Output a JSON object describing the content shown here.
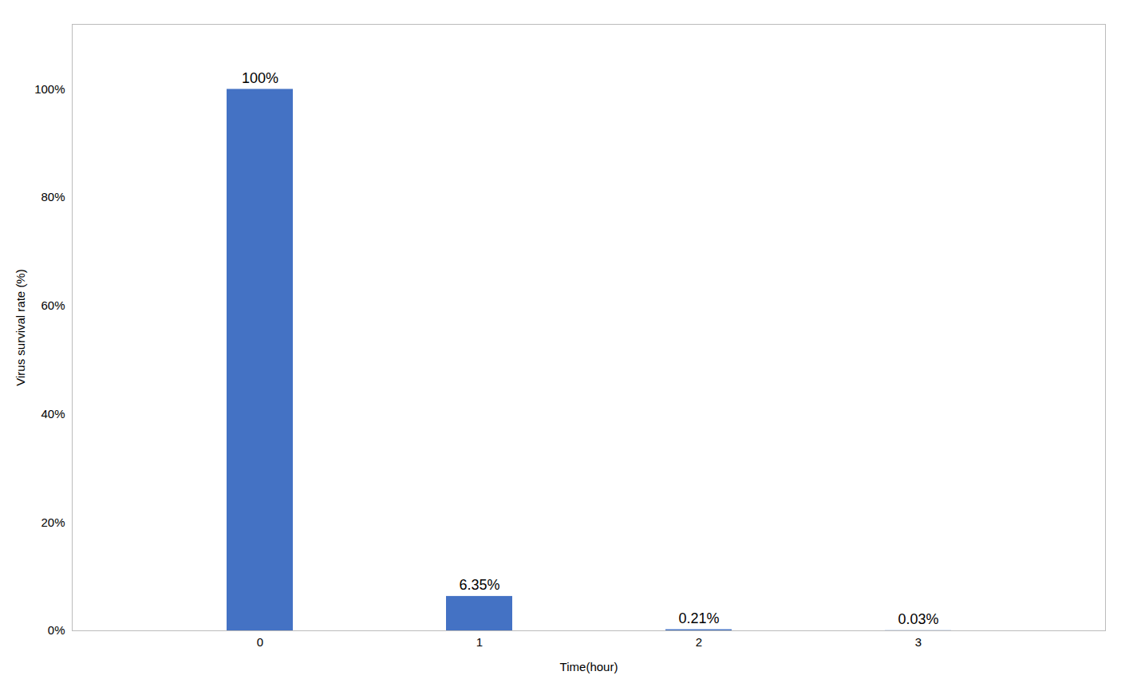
{
  "chart_data": {
    "type": "bar",
    "categories": [
      "0",
      "1",
      "2",
      "3"
    ],
    "values": [
      100.0,
      6.35,
      0.21,
      0.03
    ],
    "value_labels": [
      "100%",
      "6.35%",
      "0.21%",
      "0.03%"
    ],
    "data_labels": true,
    "color": "#4472C4",
    "xlabel": "Time(hour)",
    "ylabel": "Virus survival rate (%)",
    "ylim": [
      0,
      112
    ],
    "yticks": [
      {
        "value": 0,
        "label": "0%"
      },
      {
        "value": 20,
        "label": "20%"
      },
      {
        "value": 40,
        "label": "40%"
      },
      {
        "value": 60,
        "label": "60%"
      },
      {
        "value": 80,
        "label": "80%"
      },
      {
        "value": 100,
        "label": "100%"
      }
    ],
    "grid": false
  }
}
